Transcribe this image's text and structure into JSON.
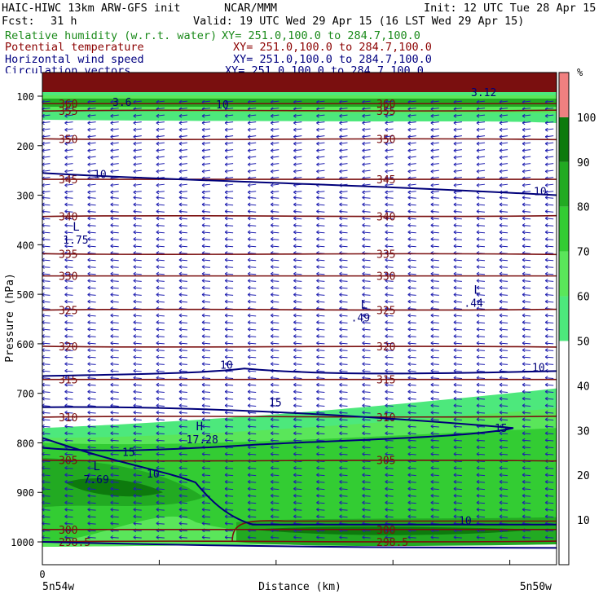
{
  "header": {
    "model": "HAIC-HIWC 13km ARW-GFS init",
    "org": "NCAR/MMM",
    "init": "Init: 12 UTC Tue 28 Apr 15",
    "fcst_label": "Fcst:",
    "fcst_value": "31 h",
    "valid": "Valid: 19 UTC Wed 29 Apr 15 (16 LST Wed 29 Apr 15)",
    "fields": [
      {
        "name": "Relative humidity (w.r.t. water)",
        "xy": "XY= 251.0,100.0 to 284.7,100.0",
        "color": "#1a8a1a"
      },
      {
        "name": "Potential temperature",
        "xy": "XY= 251.0,100.0 to 284.7,100.0",
        "color": "#8b0000"
      },
      {
        "name": "Horizontal wind speed",
        "xy": "XY= 251.0,100.0 to 284.7,100.0",
        "color": "#000080"
      },
      {
        "name": "Circulation vectors",
        "xy": "XY= 251.0,100.0 to 284.7,100.0",
        "color": "#000080"
      }
    ]
  },
  "chart_data": {
    "type": "heatmap",
    "ylabel": "Pressure (hPa)",
    "xlabel": "Distance (km)",
    "x_tick_labels": [
      "0"
    ],
    "x_end_labels": {
      "left": "5n54w",
      "right": "5n50w"
    },
    "y_ticks": [
      100,
      200,
      300,
      400,
      500,
      600,
      700,
      800,
      900,
      1000
    ],
    "ylim": [
      1050,
      80
    ],
    "xlim": [
      0,
      100
    ],
    "colorbar": {
      "unit": "%",
      "ticks": [
        10,
        20,
        30,
        40,
        50,
        60,
        70,
        80,
        90,
        100
      ],
      "levels": [
        {
          "range": [
            0,
            50
          ],
          "color": "#ffffff"
        },
        {
          "range": [
            50,
            60
          ],
          "color": "#4de87c"
        },
        {
          "range": [
            60,
            70
          ],
          "color": "#5ae65a"
        },
        {
          "range": [
            70,
            80
          ],
          "color": "#33cc33"
        },
        {
          "range": [
            80,
            90
          ],
          "color": "#22aa22"
        },
        {
          "range": [
            90,
            100
          ],
          "color": "#0d7a0d"
        },
        {
          "range": [
            100,
            110
          ],
          "color": "#f08080"
        }
      ]
    },
    "theta_contours": [
      {
        "label": "298.5",
        "p": 1000
      },
      {
        "label": "300",
        "p": 975
      },
      {
        "label": "305",
        "p": 835
      },
      {
        "label": "310",
        "p": 748
      },
      {
        "label": "315",
        "p": 672
      },
      {
        "label": "320",
        "p": 605
      },
      {
        "label": "325",
        "p": 532
      },
      {
        "label": "330",
        "p": 463
      },
      {
        "label": "335",
        "p": 418
      },
      {
        "label": "340",
        "p": 343
      },
      {
        "label": "345",
        "p": 268
      },
      {
        "label": "350",
        "p": 186
      },
      {
        "label": "355",
        "p": 130
      },
      {
        "label": "360",
        "p": 115
      }
    ],
    "wind_contour_labels": [
      "10",
      "15"
    ],
    "extrema": [
      {
        "type": "L",
        "value": "1.75",
        "x": 4,
        "p": 385
      },
      {
        "type": "L",
        "value": ".49",
        "x": 60,
        "p": 542
      },
      {
        "type": "L",
        "value": ".44",
        "x": 82,
        "p": 512
      },
      {
        "type": "H",
        "value": "17.28",
        "x": 28,
        "p": 788
      },
      {
        "type": "L",
        "value": "7.69",
        "x": 8,
        "p": 868
      }
    ],
    "top_region_theta_labels": [
      "3.6",
      "3.12"
    ]
  }
}
